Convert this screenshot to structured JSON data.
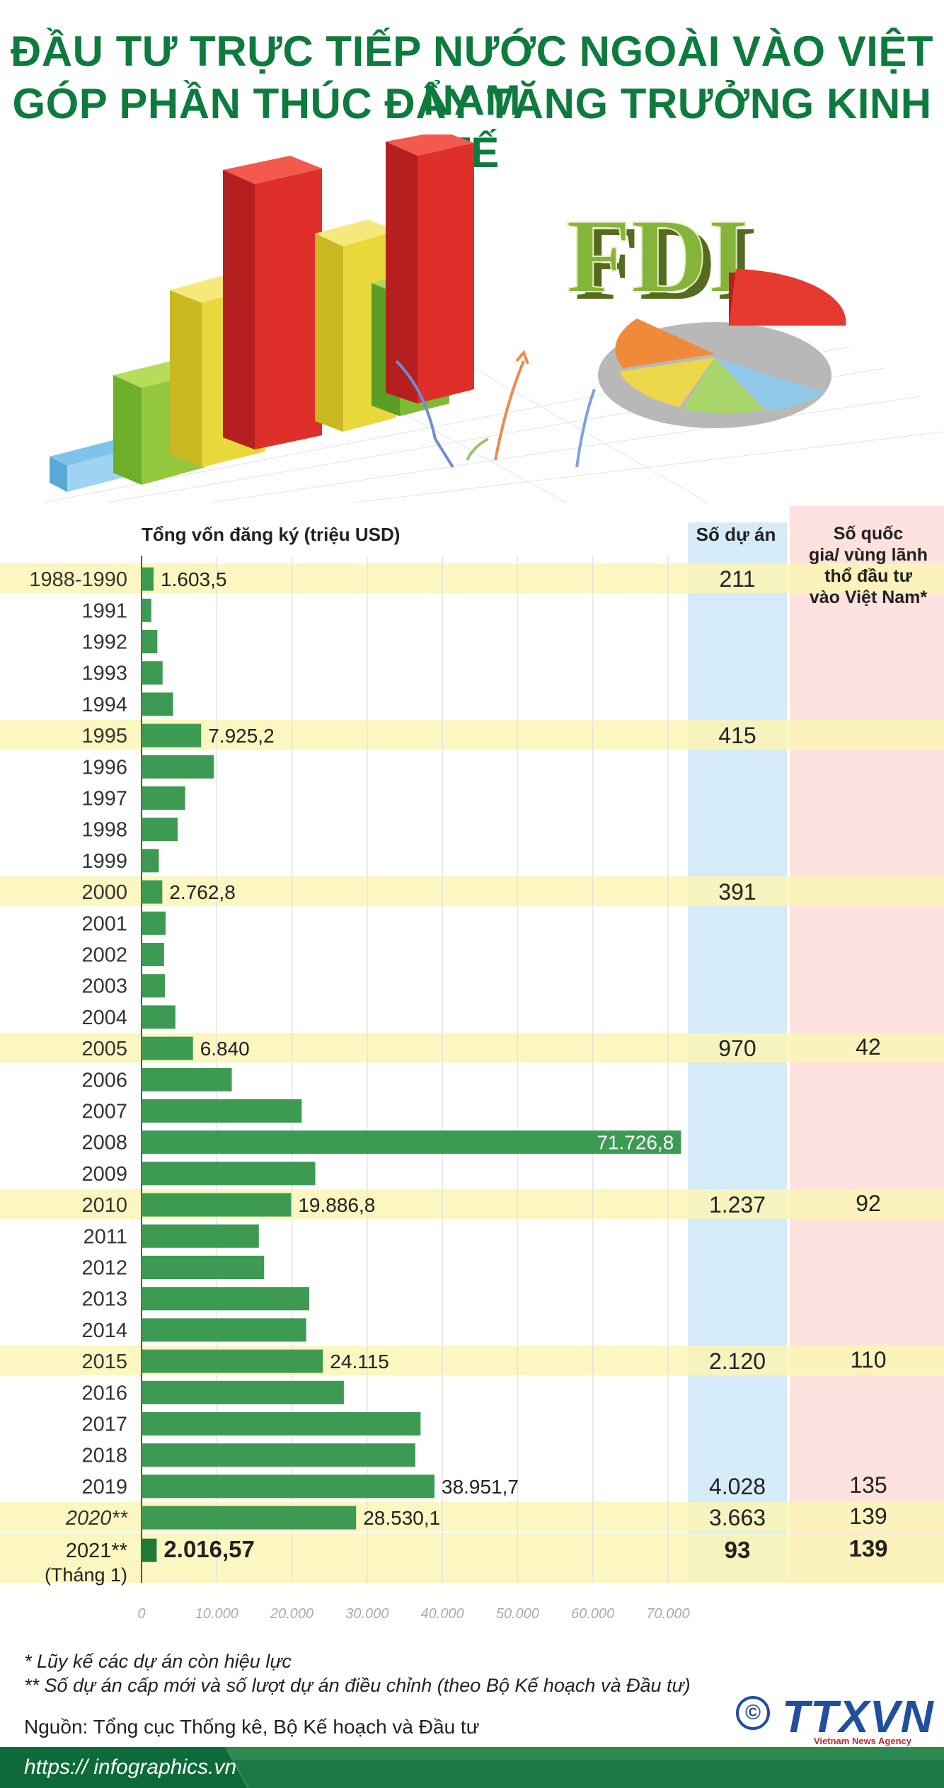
{
  "title": {
    "line1": "ĐẦU TƯ TRỰC TIẾP NƯỚC NGOÀI VÀO VIỆT NAM",
    "line2": "GÓP PHẦN THÚC ĐẨY TĂNG TRƯỞNG KINH TẾ"
  },
  "hero": {
    "badge": "FDI"
  },
  "chart_data": {
    "type": "bar",
    "orientation": "horizontal",
    "xlabel": "Tổng vốn đăng ký (triệu USD)",
    "xlim": [
      0,
      70000
    ],
    "xticks": [
      "0",
      "10.000",
      "20.000",
      "30.000",
      "40.000",
      "50.000",
      "60.000",
      "70.000"
    ],
    "col_projects_header": "Số dự án",
    "col_countries_header": "Số quốc gia/ vùng lãnh thổ đầu tư vào Việt Nam*",
    "rows": [
      {
        "year": "1988-1990",
        "value": 1603.5,
        "label": "1.603,5",
        "projects": "211",
        "countries": "",
        "highlight": true
      },
      {
        "year": "1991",
        "value": 1300,
        "label": "",
        "projects": "",
        "countries": "",
        "highlight": false
      },
      {
        "year": "1992",
        "value": 2100,
        "label": "",
        "projects": "",
        "countries": "",
        "highlight": false
      },
      {
        "year": "1993",
        "value": 2800,
        "label": "",
        "projects": "",
        "countries": "",
        "highlight": false
      },
      {
        "year": "1994",
        "value": 4200,
        "label": "",
        "projects": "",
        "countries": "",
        "highlight": false
      },
      {
        "year": "1995",
        "value": 7925.2,
        "label": "7.925,2",
        "projects": "415",
        "countries": "",
        "highlight": true
      },
      {
        "year": "1996",
        "value": 9600,
        "label": "",
        "projects": "",
        "countries": "",
        "highlight": false
      },
      {
        "year": "1997",
        "value": 5800,
        "label": "",
        "projects": "",
        "countries": "",
        "highlight": false
      },
      {
        "year": "1998",
        "value": 4800,
        "label": "",
        "projects": "",
        "countries": "",
        "highlight": false
      },
      {
        "year": "1999",
        "value": 2300,
        "label": "",
        "projects": "",
        "countries": "",
        "highlight": false
      },
      {
        "year": "2000",
        "value": 2762.8,
        "label": "2.762,8",
        "projects": "391",
        "countries": "",
        "highlight": true
      },
      {
        "year": "2001",
        "value": 3200,
        "label": "",
        "projects": "",
        "countries": "",
        "highlight": false
      },
      {
        "year": "2002",
        "value": 3000,
        "label": "",
        "projects": "",
        "countries": "",
        "highlight": false
      },
      {
        "year": "2003",
        "value": 3100,
        "label": "",
        "projects": "",
        "countries": "",
        "highlight": false
      },
      {
        "year": "2004",
        "value": 4500,
        "label": "",
        "projects": "",
        "countries": "",
        "highlight": false
      },
      {
        "year": "2005",
        "value": 6840,
        "label": "6.840",
        "projects": "970",
        "countries": "42",
        "highlight": true
      },
      {
        "year": "2006",
        "value": 12000,
        "label": "",
        "projects": "",
        "countries": "",
        "highlight": false
      },
      {
        "year": "2007",
        "value": 21300,
        "label": "",
        "projects": "",
        "countries": "",
        "highlight": false
      },
      {
        "year": "2008",
        "value": 71726.8,
        "label": "71.726,8",
        "projects": "",
        "countries": "",
        "highlight": false,
        "label_inside": true
      },
      {
        "year": "2009",
        "value": 23100,
        "label": "",
        "projects": "",
        "countries": "",
        "highlight": false
      },
      {
        "year": "2010",
        "value": 19886.8,
        "label": "19.886,8",
        "projects": "1.237",
        "countries": "92",
        "highlight": true
      },
      {
        "year": "2011",
        "value": 15600,
        "label": "",
        "projects": "",
        "countries": "",
        "highlight": false
      },
      {
        "year": "2012",
        "value": 16300,
        "label": "",
        "projects": "",
        "countries": "",
        "highlight": false
      },
      {
        "year": "2013",
        "value": 22300,
        "label": "",
        "projects": "",
        "countries": "",
        "highlight": false
      },
      {
        "year": "2014",
        "value": 21900,
        "label": "",
        "projects": "",
        "countries": "",
        "highlight": false
      },
      {
        "year": "2015",
        "value": 24115,
        "label": "24.115",
        "projects": "2.120",
        "countries": "110",
        "highlight": true
      },
      {
        "year": "2016",
        "value": 26900,
        "label": "",
        "projects": "",
        "countries": "",
        "highlight": false
      },
      {
        "year": "2017",
        "value": 37100,
        "label": "",
        "projects": "",
        "countries": "",
        "highlight": false
      },
      {
        "year": "2018",
        "value": 36400,
        "label": "",
        "projects": "",
        "countries": "",
        "highlight": false
      },
      {
        "year": "2019",
        "value": 38951.7,
        "label": "38.951,7",
        "projects": "4.028",
        "countries": "135",
        "highlight": false
      },
      {
        "year": "2020**",
        "value": 28530.1,
        "label": "28.530,1",
        "projects": "3.663",
        "countries": "139",
        "highlight": true
      },
      {
        "year": "2021**",
        "year_sub": "(Tháng 1)",
        "value": 2016.57,
        "label": "2.016,57",
        "projects": "93",
        "countries": "139",
        "highlight": true,
        "bold": true
      }
    ]
  },
  "footnotes": {
    "note1": "* Lũy kế các dự án còn hiệu lực",
    "note2": "** Số dự án cấp mới và số lượt dự án điều chỉnh (theo Bộ Kế hoạch và Đầu tư)"
  },
  "source": "Nguồn: Tổng cục Thống kê, Bộ Kế hoạch và Đầu tư",
  "url": "https:// infographics.vn",
  "logo": {
    "text": "TTXVN",
    "sub": "Vietnam News Agency",
    "copyright": "©"
  },
  "colors": {
    "title": "#0e7b3e",
    "bar": "#3d9a53",
    "highlight_row": "#fcf4b5",
    "projects_col": "#d6ebf8",
    "countries_col": "#fde2df",
    "url_bar": "#0e6b39"
  }
}
